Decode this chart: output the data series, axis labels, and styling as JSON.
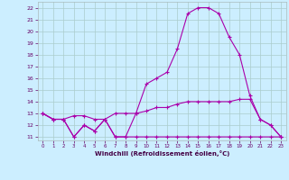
{
  "xlabel": "Windchill (Refroidissement éolien,°C)",
  "background_color": "#cceeff",
  "grid_color": "#aacccc",
  "line_color": "#aa00aa",
  "xlim": [
    -0.5,
    23.5
  ],
  "ylim": [
    10.7,
    22.5
  ],
  "xticks": [
    0,
    1,
    2,
    3,
    4,
    5,
    6,
    7,
    8,
    9,
    10,
    11,
    12,
    13,
    14,
    15,
    16,
    17,
    18,
    19,
    20,
    21,
    22,
    23
  ],
  "yticks": [
    11,
    12,
    13,
    14,
    15,
    16,
    17,
    18,
    19,
    20,
    21,
    22
  ],
  "line1_x": [
    0,
    1,
    2,
    3,
    4,
    5,
    6,
    7,
    8,
    9,
    10,
    11,
    12,
    13,
    14,
    15,
    16,
    17,
    18,
    19,
    20,
    21,
    22,
    23
  ],
  "line1_y": [
    13,
    12.5,
    12.5,
    11,
    12,
    11.5,
    12.5,
    11,
    11,
    11,
    11,
    11,
    11,
    11,
    11,
    11,
    11,
    11,
    11,
    11,
    11,
    11,
    11,
    11
  ],
  "line2_x": [
    0,
    1,
    2,
    3,
    4,
    5,
    6,
    7,
    8,
    9,
    10,
    11,
    12,
    13,
    14,
    15,
    16,
    17,
    18,
    19,
    20,
    21,
    22,
    23
  ],
  "line2_y": [
    13,
    12.5,
    12.5,
    12.8,
    12.8,
    12.5,
    12.5,
    13,
    13,
    13,
    13.2,
    13.5,
    13.5,
    13.8,
    14,
    14,
    14,
    14,
    14,
    14.2,
    14.2,
    12.5,
    12,
    11
  ],
  "line3_x": [
    0,
    1,
    2,
    3,
    4,
    5,
    6,
    7,
    8,
    9,
    10,
    11,
    12,
    13,
    14,
    15,
    16,
    17,
    18,
    19,
    20,
    21,
    22,
    23
  ],
  "line3_y": [
    13,
    12.5,
    12.5,
    11,
    12,
    11.5,
    12.5,
    11,
    11,
    13,
    15.5,
    16,
    16.5,
    18.5,
    21.5,
    22,
    22,
    21.5,
    19.5,
    18,
    14.5,
    12.5,
    12,
    11
  ]
}
